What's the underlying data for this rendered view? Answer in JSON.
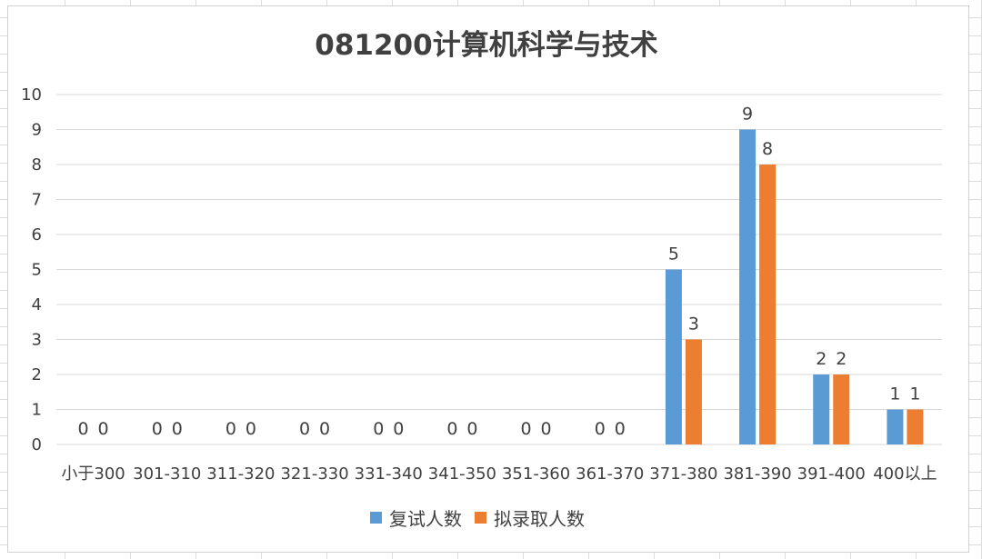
{
  "chart_data": {
    "type": "bar",
    "title": "081200计算机科学与技术",
    "categories": [
      "小于300",
      "301-310",
      "311-320",
      "321-330",
      "331-340",
      "341-350",
      "351-360",
      "361-370",
      "371-380",
      "381-390",
      "391-400",
      "400以上"
    ],
    "series": [
      {
        "name": "复试人数",
        "values": [
          0,
          0,
          0,
          0,
          0,
          0,
          0,
          0,
          5,
          9,
          2,
          1
        ],
        "color": "#5b9bd5"
      },
      {
        "name": "拟录取人数",
        "values": [
          0,
          0,
          0,
          0,
          0,
          0,
          0,
          0,
          3,
          8,
          2,
          1
        ],
        "color": "#ed7d31"
      }
    ],
    "ylim": [
      0,
      10
    ],
    "yticks": [
      0,
      1,
      2,
      3,
      4,
      5,
      6,
      7,
      8,
      9,
      10
    ],
    "grid": true,
    "legend_position": "bottom",
    "data_labels": true
  }
}
